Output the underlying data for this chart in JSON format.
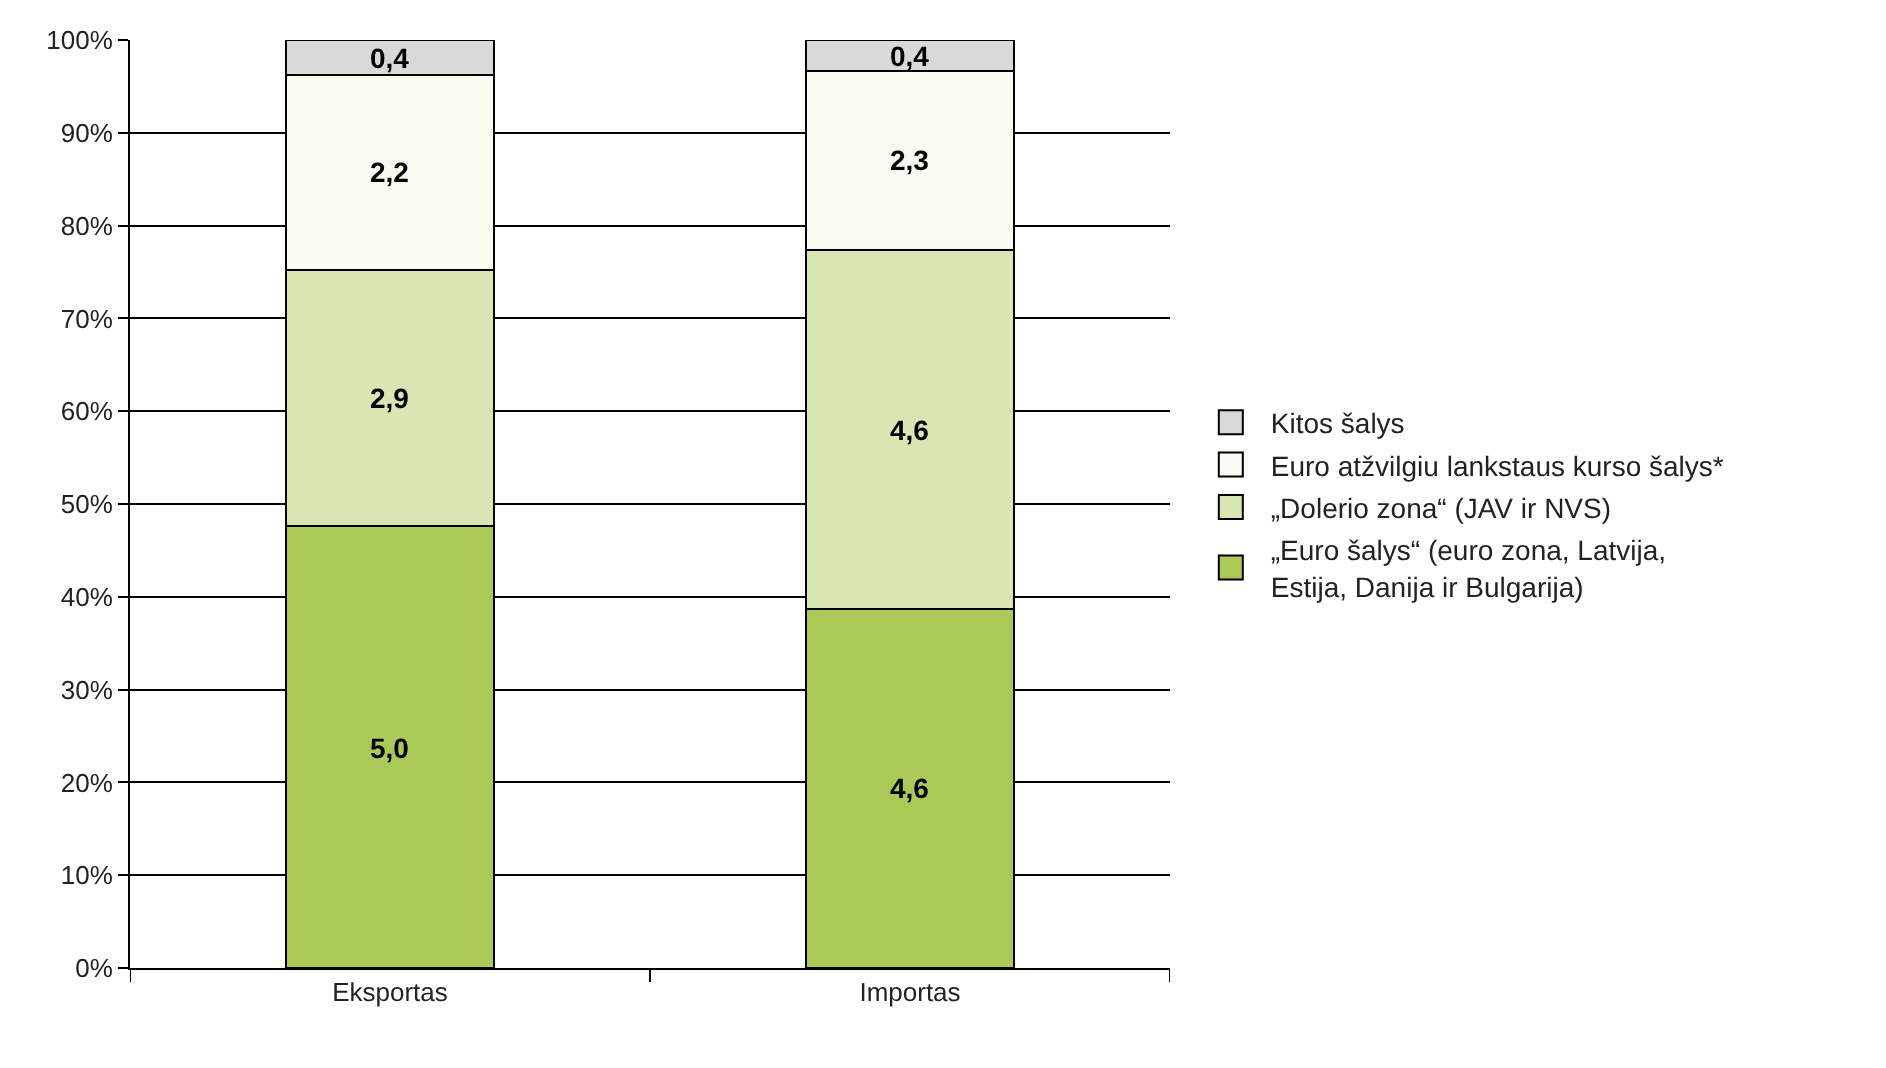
{
  "chart_data": {
    "type": "bar",
    "stacked": true,
    "categories": [
      "Eksportas",
      "Importas"
    ],
    "series": [
      {
        "name": "„Euro šalys“ (euro zona, Latvija, Estija, Danija ir Bulgarija)",
        "color": "#aac956",
        "values": [
          47.6,
          38.7
        ]
      },
      {
        "name": "„Dolerio zona“ (JAV ir NVS)",
        "color": "#d9e6b3",
        "values": [
          27.6,
          38.7
        ]
      },
      {
        "name": "Euro atžvilgiu lankstaus kurso šalys*",
        "color": "#f9faf0",
        "values": [
          21.0,
          19.3
        ]
      },
      {
        "name": "Kitos šalys",
        "color": "#d9d9d9",
        "values": [
          3.8,
          3.3
        ]
      }
    ],
    "ylim": [
      0,
      100
    ],
    "yticks": [
      {
        "value": 0,
        "label": "0%"
      },
      {
        "value": 10,
        "label": "10%"
      },
      {
        "value": 20,
        "label": "20%"
      },
      {
        "value": 30,
        "label": "30%"
      },
      {
        "value": 40,
        "label": "40%"
      },
      {
        "value": 50,
        "label": "50%"
      },
      {
        "value": 60,
        "label": "60%"
      },
      {
        "value": 70,
        "label": "70%"
      },
      {
        "value": 80,
        "label": "80%"
      },
      {
        "value": 90,
        "label": "90%"
      },
      {
        "value": 100,
        "label": "100%"
      }
    ],
    "annotations": [
      "5,0",
      "2,9",
      "2,2",
      "0,4",
      "4,6",
      "4,6",
      "2,3",
      "0,4"
    ],
    "grid": "y",
    "legend": "right"
  }
}
